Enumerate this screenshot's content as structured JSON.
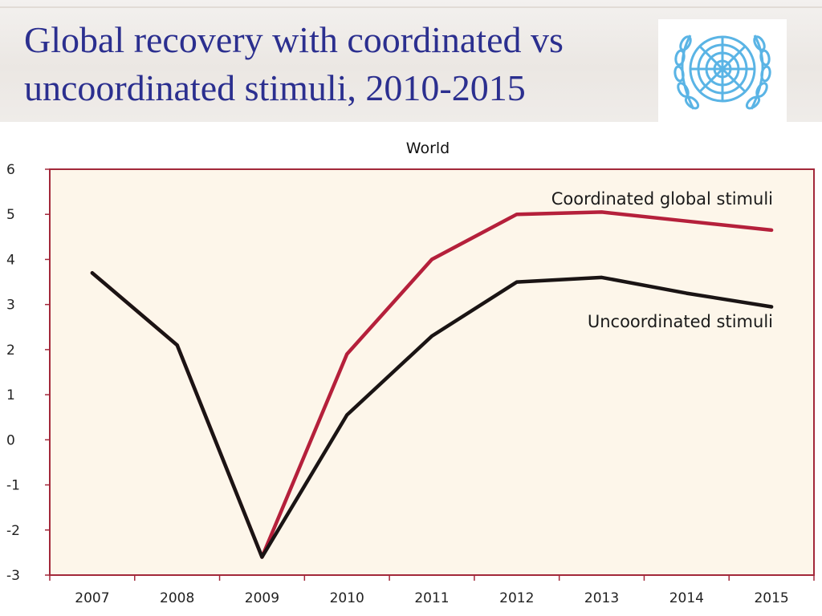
{
  "slide": {
    "title_line1": "Global recovery with coordinated vs",
    "title_line2": "uncoordinated stimuli, 2010-2015"
  },
  "logo": {
    "icon": "un-emblem-icon",
    "color": "#5ab4e5"
  },
  "colors": {
    "plot_bg": "#fdf6ea",
    "frame": "#a3283a",
    "coordinated": "#b5203b",
    "uncoordinated": "#1a1414"
  },
  "chart_data": {
    "type": "line",
    "title": "World",
    "xlabel": "",
    "ylabel": "",
    "x": [
      2007,
      2008,
      2009,
      2010,
      2011,
      2012,
      2013,
      2014,
      2015
    ],
    "ylim": [
      -3,
      6
    ],
    "yticks": [
      -3,
      -2,
      -1,
      0,
      1,
      2,
      3,
      4,
      5,
      6
    ],
    "grid": false,
    "series": [
      {
        "name": "Coordinated global stimuli",
        "values": [
          3.7,
          2.1,
          -2.6,
          1.9,
          4.0,
          5.0,
          5.05,
          4.85,
          4.65
        ]
      },
      {
        "name": "Uncoordinated stimuli",
        "values": [
          3.7,
          2.1,
          -2.6,
          0.55,
          2.3,
          3.5,
          3.6,
          3.25,
          2.95
        ]
      }
    ]
  }
}
